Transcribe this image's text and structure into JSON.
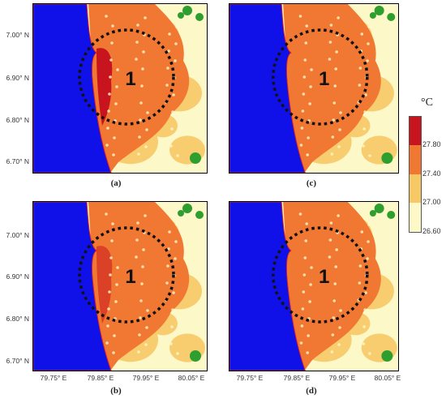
{
  "panels": [
    {
      "caption": "(a)",
      "zone_label": "1",
      "urban_core": "hot"
    },
    {
      "caption": "(c)",
      "zone_label": "1",
      "urban_core": "warm"
    },
    {
      "caption": "(b)",
      "zone_label": "1",
      "urban_core": "mixed"
    },
    {
      "caption": "(d)",
      "zone_label": "1",
      "urban_core": "warm"
    }
  ],
  "y_ticks": [
    "7.00° N",
    "6.90° N",
    "6.80° N",
    "6.70° N"
  ],
  "x_ticks": [
    "79.75° E",
    "79.85° E",
    "79.95° E",
    "80.05° E"
  ],
  "colorbar": {
    "unit": "°C",
    "labels": [
      "27.80",
      "27.40",
      "27.00",
      "26.60"
    ],
    "colors": [
      "#c8141e",
      "#f07832",
      "#f7c866",
      "#fdf8c8"
    ]
  },
  "colors": {
    "sea": "#1010e8",
    "vegetation": "#2e9e2e",
    "coast_line": "#e02020"
  }
}
